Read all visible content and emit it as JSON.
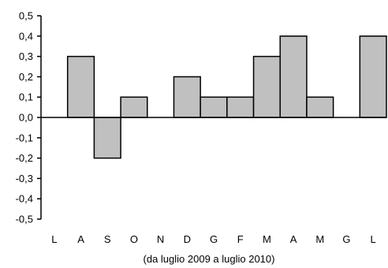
{
  "chart_data": {
    "type": "bar",
    "categories": [
      "L",
      "A",
      "S",
      "O",
      "N",
      "D",
      "G",
      "F",
      "M",
      "A",
      "M",
      "G",
      "L"
    ],
    "values": [
      0,
      0.3,
      -0.2,
      0.1,
      0,
      0.2,
      0.1,
      0.1,
      0.3,
      0.4,
      0.1,
      0,
      0.4
    ],
    "ylim": [
      -0.5,
      0.5
    ],
    "yticks": [
      "0,5",
      "0,4",
      "0,3",
      "0,2",
      "0,1",
      "0,0",
      "-0,1",
      "-0,2",
      "-0,3",
      "-0,4",
      "-0,5"
    ],
    "ytick_values": [
      0.5,
      0.4,
      0.3,
      0.2,
      0.1,
      0,
      -0.1,
      -0.2,
      -0.3,
      -0.4,
      -0.5
    ],
    "xlabel": "(da luglio 2009  a luglio 2010)",
    "ylabel": "",
    "title": "",
    "grid": false,
    "legend": "none",
    "colors": {
      "bar_fill": "#c0c0c0",
      "bar_stroke": "#000000",
      "axis": "#000000",
      "background": "#ffffff"
    }
  }
}
